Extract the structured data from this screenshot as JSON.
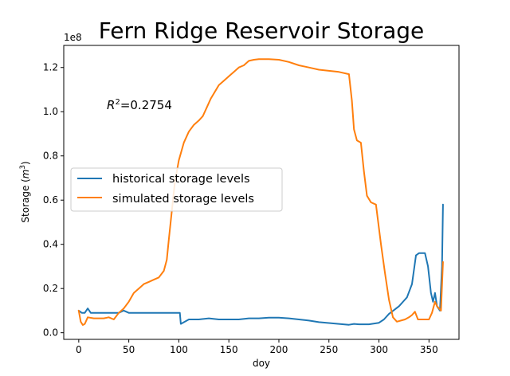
{
  "chart_data": {
    "type": "line",
    "title": "Fern Ridge Reservoir Storage",
    "xlabel": "doy",
    "ylabel_main": "Storage (",
    "ylabel_unit": "m",
    "ylabel_exp": "3",
    "ylabel_close": ")",
    "offset_label": "1e8",
    "annotation": {
      "base": "R",
      "sup": "2",
      "rest": "=0.2754"
    },
    "xlim": [
      -15,
      380
    ],
    "ylim": [
      -0.03,
      1.3
    ],
    "y_scale_factor": 100000000,
    "xticks": [
      0,
      50,
      100,
      150,
      200,
      250,
      300,
      350
    ],
    "yticks": [
      0.0,
      0.2,
      0.4,
      0.6,
      0.8,
      1.0,
      1.2
    ],
    "ytick_labels": [
      "0.0",
      "0.2",
      "0.4",
      "0.6",
      "0.8",
      "1.0",
      "1.2"
    ],
    "grid": false,
    "legend_position": "center-left",
    "series": [
      {
        "name": "historical storage levels",
        "color": "#1f77b4",
        "points": [
          [
            0,
            0.1
          ],
          [
            3,
            0.09
          ],
          [
            6,
            0.09
          ],
          [
            9,
            0.11
          ],
          [
            12,
            0.09
          ],
          [
            20,
            0.09
          ],
          [
            25,
            0.09
          ],
          [
            30,
            0.09
          ],
          [
            40,
            0.09
          ],
          [
            45,
            0.1
          ],
          [
            50,
            0.09
          ],
          [
            60,
            0.09
          ],
          [
            70,
            0.09
          ],
          [
            80,
            0.09
          ],
          [
            90,
            0.09
          ],
          [
            100,
            0.09
          ],
          [
            101,
            0.09
          ],
          [
            102,
            0.04
          ],
          [
            110,
            0.06
          ],
          [
            120,
            0.06
          ],
          [
            130,
            0.065
          ],
          [
            140,
            0.06
          ],
          [
            150,
            0.06
          ],
          [
            160,
            0.06
          ],
          [
            170,
            0.065
          ],
          [
            180,
            0.065
          ],
          [
            190,
            0.068
          ],
          [
            200,
            0.068
          ],
          [
            210,
            0.065
          ],
          [
            220,
            0.06
          ],
          [
            230,
            0.055
          ],
          [
            240,
            0.048
          ],
          [
            250,
            0.044
          ],
          [
            260,
            0.04
          ],
          [
            270,
            0.036
          ],
          [
            275,
            0.04
          ],
          [
            280,
            0.038
          ],
          [
            290,
            0.038
          ],
          [
            300,
            0.045
          ],
          [
            305,
            0.06
          ],
          [
            310,
            0.085
          ],
          [
            320,
            0.12
          ],
          [
            328,
            0.16
          ],
          [
            333,
            0.22
          ],
          [
            337,
            0.35
          ],
          [
            340,
            0.36
          ],
          [
            346,
            0.36
          ],
          [
            349,
            0.3
          ],
          [
            352,
            0.18
          ],
          [
            354,
            0.14
          ],
          [
            356,
            0.18
          ],
          [
            358,
            0.12
          ],
          [
            361,
            0.1
          ],
          [
            363,
            0.3
          ],
          [
            364,
            0.58
          ]
        ]
      },
      {
        "name": "simulated storage levels",
        "color": "#ff7f0e",
        "points": [
          [
            0,
            0.1
          ],
          [
            2,
            0.05
          ],
          [
            4,
            0.035
          ],
          [
            6,
            0.04
          ],
          [
            9,
            0.07
          ],
          [
            15,
            0.065
          ],
          [
            25,
            0.065
          ],
          [
            30,
            0.07
          ],
          [
            35,
            0.06
          ],
          [
            40,
            0.09
          ],
          [
            45,
            0.11
          ],
          [
            50,
            0.14
          ],
          [
            55,
            0.18
          ],
          [
            60,
            0.2
          ],
          [
            65,
            0.22
          ],
          [
            70,
            0.23
          ],
          [
            75,
            0.24
          ],
          [
            80,
            0.25
          ],
          [
            85,
            0.28
          ],
          [
            88,
            0.33
          ],
          [
            90,
            0.42
          ],
          [
            93,
            0.55
          ],
          [
            96,
            0.68
          ],
          [
            100,
            0.78
          ],
          [
            105,
            0.86
          ],
          [
            110,
            0.91
          ],
          [
            115,
            0.94
          ],
          [
            120,
            0.96
          ],
          [
            124,
            0.98
          ],
          [
            128,
            1.02
          ],
          [
            132,
            1.06
          ],
          [
            136,
            1.09
          ],
          [
            140,
            1.12
          ],
          [
            145,
            1.14
          ],
          [
            150,
            1.16
          ],
          [
            155,
            1.18
          ],
          [
            160,
            1.2
          ],
          [
            165,
            1.21
          ],
          [
            170,
            1.23
          ],
          [
            175,
            1.235
          ],
          [
            180,
            1.238
          ],
          [
            190,
            1.238
          ],
          [
            200,
            1.235
          ],
          [
            210,
            1.225
          ],
          [
            220,
            1.21
          ],
          [
            230,
            1.2
          ],
          [
            240,
            1.19
          ],
          [
            250,
            1.185
          ],
          [
            260,
            1.18
          ],
          [
            270,
            1.17
          ],
          [
            273,
            1.05
          ],
          [
            275,
            0.92
          ],
          [
            278,
            0.87
          ],
          [
            282,
            0.86
          ],
          [
            285,
            0.73
          ],
          [
            288,
            0.62
          ],
          [
            292,
            0.59
          ],
          [
            297,
            0.58
          ],
          [
            302,
            0.4
          ],
          [
            306,
            0.27
          ],
          [
            310,
            0.15
          ],
          [
            314,
            0.07
          ],
          [
            318,
            0.05
          ],
          [
            322,
            0.055
          ],
          [
            326,
            0.06
          ],
          [
            330,
            0.07
          ],
          [
            333,
            0.08
          ],
          [
            336,
            0.095
          ],
          [
            339,
            0.06
          ],
          [
            343,
            0.06
          ],
          [
            350,
            0.06
          ],
          [
            353,
            0.09
          ],
          [
            356,
            0.14
          ],
          [
            358,
            0.12
          ],
          [
            360,
            0.11
          ],
          [
            362,
            0.1
          ],
          [
            364,
            0.32
          ]
        ]
      }
    ]
  }
}
